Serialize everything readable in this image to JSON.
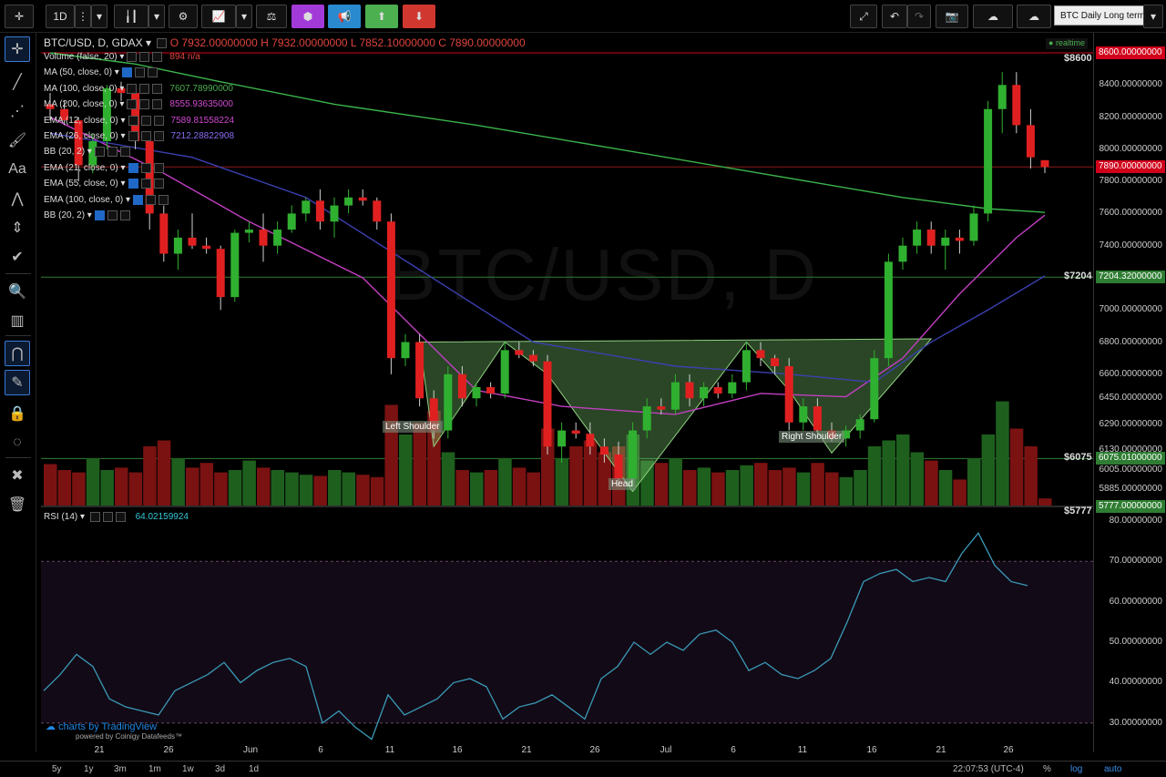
{
  "toolbar": {
    "interval": "1D",
    "chart_name": "BTC Daily Long term",
    "icons": [
      "crosshair-icon",
      "menu-dots-icon",
      "candles-icon",
      "gear-icon",
      "indicators-icon",
      "compare-icon",
      "cube-icon",
      "megaphone-icon",
      "up-icon",
      "down-icon",
      "fullscreen-icon",
      "undo-icon",
      "redo-icon",
      "camera-icon",
      "cloud-save-icon",
      "cloud-load-icon"
    ]
  },
  "legend": {
    "symbol": "BTC/USD, D, GDAX",
    "ohlc": "O 7932.00000000  H 7932.00000000  L 7852.10000000  C 7890.00000000",
    "realtime": "realtime",
    "indicators": [
      {
        "name": "Volume (false, 20)",
        "value": "894  n/a",
        "color": "#e0443e"
      },
      {
        "name": "MA (50, close, 0)",
        "value": "",
        "color": "#ccc"
      },
      {
        "name": "MA (100, close, 0)",
        "value": "7607.78990000",
        "color": "#4caf50"
      },
      {
        "name": "MA (200, close, 0)",
        "value": "8555.93635000",
        "color": "#d24ad2"
      },
      {
        "name": "EMA (12, close, 0)",
        "value": "7589.81558224",
        "color": "#d24ad2"
      },
      {
        "name": "EMA (26, close, 0)",
        "value": "7212.28822908",
        "color": "#8a6cf0"
      },
      {
        "name": "BB (20, 2)",
        "value": "",
        "color": "#ccc"
      },
      {
        "name": "EMA (21, close, 0)",
        "value": "",
        "color": "#ccc"
      },
      {
        "name": "EMA (55, close, 0)",
        "value": "",
        "color": "#ccc"
      },
      {
        "name": "EMA (100, close, 0)",
        "value": "",
        "color": "#ccc"
      },
      {
        "name": "BB (20, 2)",
        "value": "",
        "color": "#ccc"
      }
    ],
    "rsi": {
      "name": "RSI (14)",
      "value": "64.02159924"
    }
  },
  "pattern_labels": {
    "left": "Left Shoulder",
    "head": "Head",
    "right": "Right Shoulder"
  },
  "price_axis": {
    "ticks": [
      "8400.00000000",
      "8200.00000000",
      "8000.00000000",
      "7800.00000000",
      "7600.00000000",
      "7400.00000000",
      "7200.00000000",
      "7000.00000000",
      "6800.00000000",
      "6600.00000000",
      "6450.00000000",
      "6290.00000000",
      "6130.00000000",
      "6005.00000000",
      "5885.00000000",
      "5777.00000000"
    ],
    "tags": {
      "top": "8600.00000000",
      "last": "7890.00000000",
      "mid": "7204.32000000",
      "low": "6075.01000000",
      "bottom": "5777.00000000"
    },
    "labels": {
      "top": "$8600",
      "mid": "$7204",
      "low": "$6075",
      "bottom": "$5777"
    },
    "rsi_ticks": [
      "80.00000000",
      "70.00000000",
      "60.00000000",
      "50.00000000",
      "40.00000000",
      "30.00000000"
    ]
  },
  "time_axis": [
    "21",
    "26",
    "Jun",
    "6",
    "11",
    "16",
    "21",
    "26",
    "Jul",
    "6",
    "11",
    "16",
    "21",
    "26"
  ],
  "bottom": {
    "ranges": [
      "5y",
      "1y",
      "3m",
      "1m",
      "1w",
      "3d",
      "1d"
    ],
    "clock": "22:07:53 (UTC-4)",
    "pct": "%",
    "log": "log",
    "auto": "auto"
  },
  "watermark": {
    "brand": "charts by TradingView",
    "sub": "powered by Coinigy Datafeeds™",
    "big": "BTC/USD, D"
  },
  "chart_data": {
    "type": "candlestick",
    "title": "BTC/USD, D, GDAX",
    "ylim": [
      5777,
      8600
    ],
    "candles": [
      [
        8280,
        8350,
        8180,
        8250
      ],
      [
        8250,
        8300,
        8150,
        8180
      ],
      [
        8180,
        8200,
        7800,
        7900
      ],
      [
        7900,
        8100,
        7850,
        8050
      ],
      [
        8050,
        8400,
        8000,
        8380
      ],
      [
        8380,
        8420,
        8300,
        8350
      ],
      [
        8350,
        8380,
        8000,
        8050
      ],
      [
        8050,
        8100,
        7500,
        7600
      ],
      [
        7600,
        7650,
        7300,
        7350
      ],
      [
        7350,
        7500,
        7250,
        7450
      ],
      [
        7450,
        7600,
        7380,
        7400
      ],
      [
        7400,
        7450,
        7350,
        7380
      ],
      [
        7380,
        7400,
        7000,
        7080
      ],
      [
        7080,
        7500,
        7050,
        7480
      ],
      [
        7480,
        7550,
        7420,
        7500
      ],
      [
        7500,
        7600,
        7300,
        7400
      ],
      [
        7400,
        7550,
        7350,
        7500
      ],
      [
        7500,
        7650,
        7480,
        7600
      ],
      [
        7600,
        7700,
        7550,
        7680
      ],
      [
        7680,
        7750,
        7500,
        7550
      ],
      [
        7550,
        7700,
        7450,
        7650
      ],
      [
        7650,
        7750,
        7600,
        7700
      ],
      [
        7700,
        7750,
        7650,
        7680
      ],
      [
        7680,
        7700,
        7500,
        7550
      ],
      [
        7550,
        7600,
        6600,
        6700
      ],
      [
        6700,
        6850,
        6650,
        6800
      ],
      [
        6800,
        6850,
        6400,
        6450
      ],
      [
        6450,
        6500,
        6200,
        6250
      ],
      [
        6250,
        6650,
        6200,
        6600
      ],
      [
        6600,
        6650,
        6400,
        6450
      ],
      [
        6450,
        6550,
        6400,
        6520
      ],
      [
        6520,
        6550,
        6450,
        6480
      ],
      [
        6480,
        6800,
        6450,
        6750
      ],
      [
        6750,
        6800,
        6700,
        6720
      ],
      [
        6720,
        6750,
        6650,
        6680
      ],
      [
        6680,
        6720,
        6100,
        6150
      ],
      [
        6150,
        6300,
        6050,
        6250
      ],
      [
        6250,
        6300,
        6200,
        6230
      ],
      [
        6230,
        6300,
        6100,
        6150
      ],
      [
        6150,
        6200,
        6050,
        6100
      ],
      [
        6100,
        6180,
        5900,
        5950
      ],
      [
        5950,
        6300,
        5900,
        6250
      ],
      [
        6250,
        6450,
        6200,
        6400
      ],
      [
        6400,
        6450,
        6350,
        6380
      ],
      [
        6380,
        6600,
        6350,
        6550
      ],
      [
        6550,
        6600,
        6400,
        6450
      ],
      [
        6450,
        6550,
        6400,
        6520
      ],
      [
        6520,
        6550,
        6450,
        6480
      ],
      [
        6480,
        6600,
        6450,
        6550
      ],
      [
        6550,
        6800,
        6500,
        6750
      ],
      [
        6750,
        6800,
        6650,
        6700
      ],
      [
        6700,
        6720,
        6600,
        6650
      ],
      [
        6650,
        6700,
        6250,
        6300
      ],
      [
        6300,
        6450,
        6250,
        6400
      ],
      [
        6400,
        6450,
        6200,
        6250
      ],
      [
        6250,
        6300,
        6180,
        6200
      ],
      [
        6200,
        6280,
        6150,
        6250
      ],
      [
        6250,
        6350,
        6200,
        6320
      ],
      [
        6320,
        6750,
        6300,
        6700
      ],
      [
        6700,
        7350,
        6650,
        7300
      ],
      [
        7300,
        7450,
        7250,
        7400
      ],
      [
        7400,
        7550,
        7350,
        7500
      ],
      [
        7500,
        7550,
        7350,
        7400
      ],
      [
        7400,
        7500,
        7250,
        7450
      ],
      [
        7450,
        7500,
        7350,
        7430
      ],
      [
        7430,
        7650,
        7400,
        7600
      ],
      [
        7600,
        8300,
        7550,
        8250
      ],
      [
        8250,
        8480,
        8100,
        8400
      ],
      [
        8400,
        8480,
        8100,
        8150
      ],
      [
        8150,
        8250,
        7880,
        7950
      ],
      [
        7932,
        7932,
        7852,
        7890
      ]
    ],
    "volume": [
      35,
      30,
      28,
      40,
      30,
      32,
      28,
      50,
      55,
      40,
      32,
      36,
      28,
      30,
      38,
      32,
      30,
      28,
      26,
      25,
      30,
      28,
      26,
      24,
      85,
      60,
      70,
      80,
      45,
      30,
      28,
      30,
      40,
      32,
      28,
      65,
      40,
      50,
      55,
      45,
      50,
      60,
      38,
      36,
      40,
      30,
      32,
      28,
      30,
      34,
      36,
      30,
      32,
      28,
      36,
      28,
      24,
      30,
      50,
      55,
      60,
      45,
      38,
      30,
      22,
      40,
      60,
      88,
      65,
      50,
      6
    ],
    "rsi": [
      38,
      42,
      47,
      44,
      36,
      34,
      33,
      32,
      38,
      40,
      42,
      45,
      40,
      43,
      45,
      46,
      44,
      30,
      33,
      29,
      26,
      37,
      32,
      34,
      36,
      40,
      41,
      39,
      31,
      34,
      35,
      37,
      34,
      31,
      41,
      44,
      50,
      47,
      50,
      48,
      52,
      53,
      50,
      43,
      45,
      42,
      41,
      43,
      46,
      55,
      65,
      67,
      68,
      65,
      66,
      65,
      72,
      77,
      69,
      65,
      64
    ],
    "mas": {
      "ma100": [
        [
          0,
          8600
        ],
        [
          6,
          8530
        ],
        [
          12,
          8420
        ],
        [
          20,
          8280
        ],
        [
          30,
          8150
        ],
        [
          40,
          8000
        ],
        [
          50,
          7850
        ],
        [
          60,
          7700
        ],
        [
          66,
          7630
        ],
        [
          70,
          7607
        ]
      ],
      "ema12": [
        [
          0,
          8200
        ],
        [
          8,
          7850
        ],
        [
          14,
          7550
        ],
        [
          22,
          7200
        ],
        [
          30,
          6500
        ],
        [
          36,
          6400
        ],
        [
          44,
          6350
        ],
        [
          50,
          6480
        ],
        [
          56,
          6460
        ],
        [
          60,
          6700
        ],
        [
          64,
          7100
        ],
        [
          68,
          7450
        ],
        [
          70,
          7590
        ]
      ],
      "ema26": [
        [
          0,
          8100
        ],
        [
          10,
          7950
        ],
        [
          18,
          7700
        ],
        [
          26,
          7250
        ],
        [
          34,
          6800
        ],
        [
          44,
          6650
        ],
        [
          52,
          6600
        ],
        [
          58,
          6550
        ],
        [
          62,
          6800
        ],
        [
          66,
          7000
        ],
        [
          70,
          7212
        ]
      ]
    }
  }
}
